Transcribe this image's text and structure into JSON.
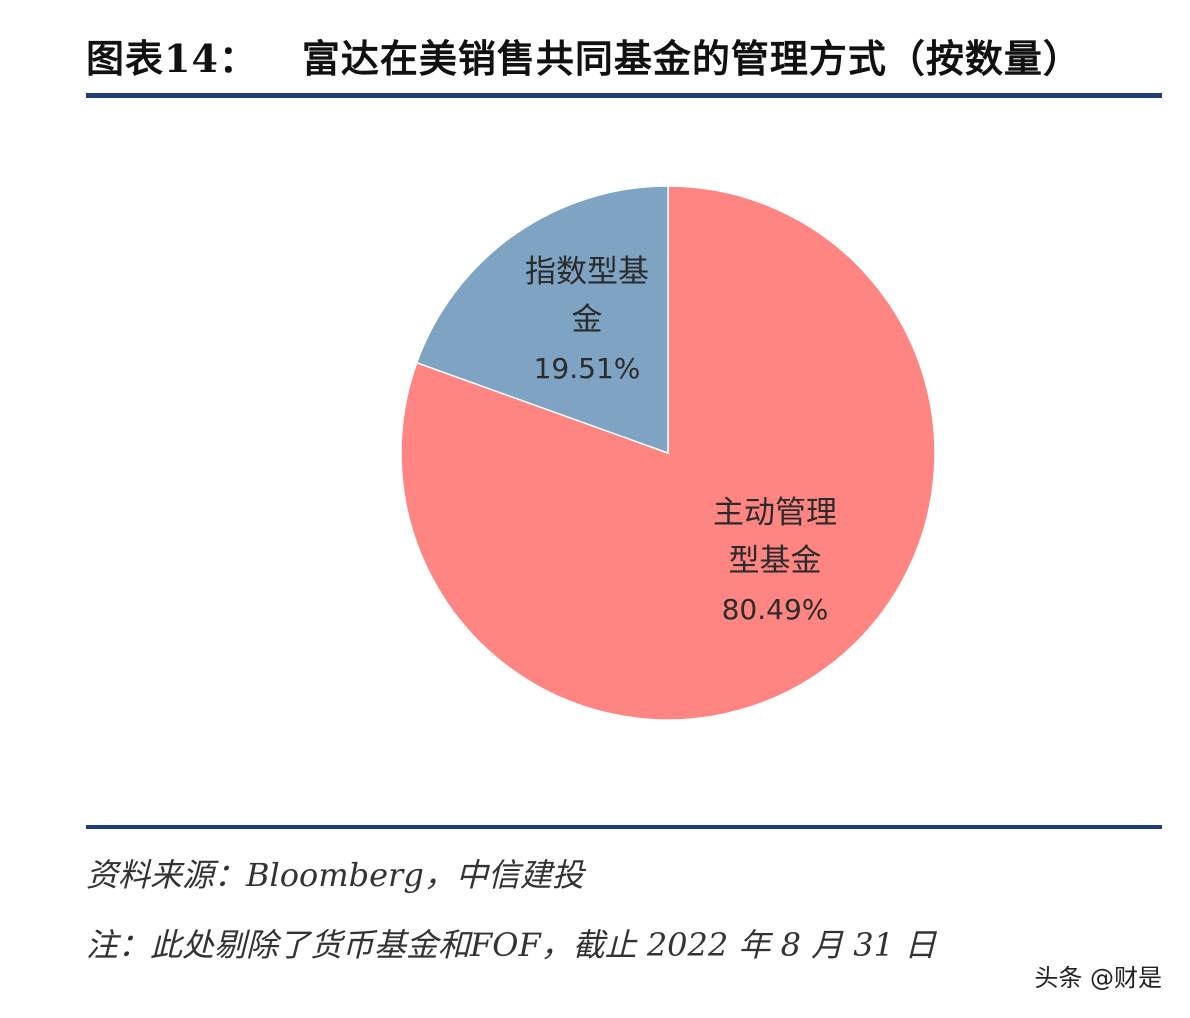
{
  "header": {
    "figure_no": "图表14：",
    "title": "富达在美销售共同基金的管理方式（按数量）"
  },
  "chart_data": {
    "type": "pie",
    "slices": [
      {
        "label_lines": [
          "主动管理",
          "型基金"
        ],
        "percent_text": "80.49%",
        "value": 80.49,
        "color": "#ff8582"
      },
      {
        "label_lines": [
          "指数型基",
          "金"
        ],
        "percent_text": "19.51%",
        "value": 19.51,
        "color": "#7fa3c2"
      }
    ],
    "legend": "none"
  },
  "footer": {
    "source": "资料来源：Bloomberg，中信建投",
    "note": "注：此处剔除了货币基金和FOF，截止 2022 年 8 月 31 日"
  },
  "watermark": "头条 @财是"
}
